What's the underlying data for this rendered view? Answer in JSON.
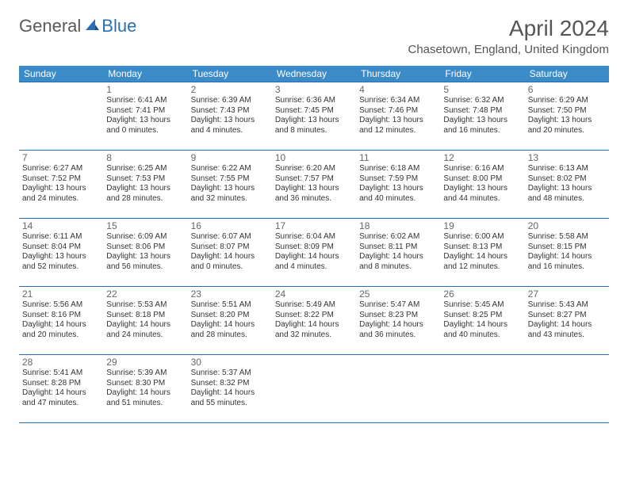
{
  "logo": {
    "text1": "General",
    "text2": "Blue"
  },
  "title": "April 2024",
  "location": "Chasetown, England, United Kingdom",
  "header_color": "#3b8bc9",
  "border_color": "#2a6fb5",
  "dayHeaders": [
    "Sunday",
    "Monday",
    "Tuesday",
    "Wednesday",
    "Thursday",
    "Friday",
    "Saturday"
  ],
  "weeks": [
    [
      null,
      {
        "d": "1",
        "sr": "Sunrise: 6:41 AM",
        "ss": "Sunset: 7:41 PM",
        "dl1": "Daylight: 13 hours",
        "dl2": "and 0 minutes."
      },
      {
        "d": "2",
        "sr": "Sunrise: 6:39 AM",
        "ss": "Sunset: 7:43 PM",
        "dl1": "Daylight: 13 hours",
        "dl2": "and 4 minutes."
      },
      {
        "d": "3",
        "sr": "Sunrise: 6:36 AM",
        "ss": "Sunset: 7:45 PM",
        "dl1": "Daylight: 13 hours",
        "dl2": "and 8 minutes."
      },
      {
        "d": "4",
        "sr": "Sunrise: 6:34 AM",
        "ss": "Sunset: 7:46 PM",
        "dl1": "Daylight: 13 hours",
        "dl2": "and 12 minutes."
      },
      {
        "d": "5",
        "sr": "Sunrise: 6:32 AM",
        "ss": "Sunset: 7:48 PM",
        "dl1": "Daylight: 13 hours",
        "dl2": "and 16 minutes."
      },
      {
        "d": "6",
        "sr": "Sunrise: 6:29 AM",
        "ss": "Sunset: 7:50 PM",
        "dl1": "Daylight: 13 hours",
        "dl2": "and 20 minutes."
      }
    ],
    [
      {
        "d": "7",
        "sr": "Sunrise: 6:27 AM",
        "ss": "Sunset: 7:52 PM",
        "dl1": "Daylight: 13 hours",
        "dl2": "and 24 minutes."
      },
      {
        "d": "8",
        "sr": "Sunrise: 6:25 AM",
        "ss": "Sunset: 7:53 PM",
        "dl1": "Daylight: 13 hours",
        "dl2": "and 28 minutes."
      },
      {
        "d": "9",
        "sr": "Sunrise: 6:22 AM",
        "ss": "Sunset: 7:55 PM",
        "dl1": "Daylight: 13 hours",
        "dl2": "and 32 minutes."
      },
      {
        "d": "10",
        "sr": "Sunrise: 6:20 AM",
        "ss": "Sunset: 7:57 PM",
        "dl1": "Daylight: 13 hours",
        "dl2": "and 36 minutes."
      },
      {
        "d": "11",
        "sr": "Sunrise: 6:18 AM",
        "ss": "Sunset: 7:59 PM",
        "dl1": "Daylight: 13 hours",
        "dl2": "and 40 minutes."
      },
      {
        "d": "12",
        "sr": "Sunrise: 6:16 AM",
        "ss": "Sunset: 8:00 PM",
        "dl1": "Daylight: 13 hours",
        "dl2": "and 44 minutes."
      },
      {
        "d": "13",
        "sr": "Sunrise: 6:13 AM",
        "ss": "Sunset: 8:02 PM",
        "dl1": "Daylight: 13 hours",
        "dl2": "and 48 minutes."
      }
    ],
    [
      {
        "d": "14",
        "sr": "Sunrise: 6:11 AM",
        "ss": "Sunset: 8:04 PM",
        "dl1": "Daylight: 13 hours",
        "dl2": "and 52 minutes."
      },
      {
        "d": "15",
        "sr": "Sunrise: 6:09 AM",
        "ss": "Sunset: 8:06 PM",
        "dl1": "Daylight: 13 hours",
        "dl2": "and 56 minutes."
      },
      {
        "d": "16",
        "sr": "Sunrise: 6:07 AM",
        "ss": "Sunset: 8:07 PM",
        "dl1": "Daylight: 14 hours",
        "dl2": "and 0 minutes."
      },
      {
        "d": "17",
        "sr": "Sunrise: 6:04 AM",
        "ss": "Sunset: 8:09 PM",
        "dl1": "Daylight: 14 hours",
        "dl2": "and 4 minutes."
      },
      {
        "d": "18",
        "sr": "Sunrise: 6:02 AM",
        "ss": "Sunset: 8:11 PM",
        "dl1": "Daylight: 14 hours",
        "dl2": "and 8 minutes."
      },
      {
        "d": "19",
        "sr": "Sunrise: 6:00 AM",
        "ss": "Sunset: 8:13 PM",
        "dl1": "Daylight: 14 hours",
        "dl2": "and 12 minutes."
      },
      {
        "d": "20",
        "sr": "Sunrise: 5:58 AM",
        "ss": "Sunset: 8:15 PM",
        "dl1": "Daylight: 14 hours",
        "dl2": "and 16 minutes."
      }
    ],
    [
      {
        "d": "21",
        "sr": "Sunrise: 5:56 AM",
        "ss": "Sunset: 8:16 PM",
        "dl1": "Daylight: 14 hours",
        "dl2": "and 20 minutes."
      },
      {
        "d": "22",
        "sr": "Sunrise: 5:53 AM",
        "ss": "Sunset: 8:18 PM",
        "dl1": "Daylight: 14 hours",
        "dl2": "and 24 minutes."
      },
      {
        "d": "23",
        "sr": "Sunrise: 5:51 AM",
        "ss": "Sunset: 8:20 PM",
        "dl1": "Daylight: 14 hours",
        "dl2": "and 28 minutes."
      },
      {
        "d": "24",
        "sr": "Sunrise: 5:49 AM",
        "ss": "Sunset: 8:22 PM",
        "dl1": "Daylight: 14 hours",
        "dl2": "and 32 minutes."
      },
      {
        "d": "25",
        "sr": "Sunrise: 5:47 AM",
        "ss": "Sunset: 8:23 PM",
        "dl1": "Daylight: 14 hours",
        "dl2": "and 36 minutes."
      },
      {
        "d": "26",
        "sr": "Sunrise: 5:45 AM",
        "ss": "Sunset: 8:25 PM",
        "dl1": "Daylight: 14 hours",
        "dl2": "and 40 minutes."
      },
      {
        "d": "27",
        "sr": "Sunrise: 5:43 AM",
        "ss": "Sunset: 8:27 PM",
        "dl1": "Daylight: 14 hours",
        "dl2": "and 43 minutes."
      }
    ],
    [
      {
        "d": "28",
        "sr": "Sunrise: 5:41 AM",
        "ss": "Sunset: 8:28 PM",
        "dl1": "Daylight: 14 hours",
        "dl2": "and 47 minutes."
      },
      {
        "d": "29",
        "sr": "Sunrise: 5:39 AM",
        "ss": "Sunset: 8:30 PM",
        "dl1": "Daylight: 14 hours",
        "dl2": "and 51 minutes."
      },
      {
        "d": "30",
        "sr": "Sunrise: 5:37 AM",
        "ss": "Sunset: 8:32 PM",
        "dl1": "Daylight: 14 hours",
        "dl2": "and 55 minutes."
      },
      null,
      null,
      null,
      null
    ]
  ]
}
